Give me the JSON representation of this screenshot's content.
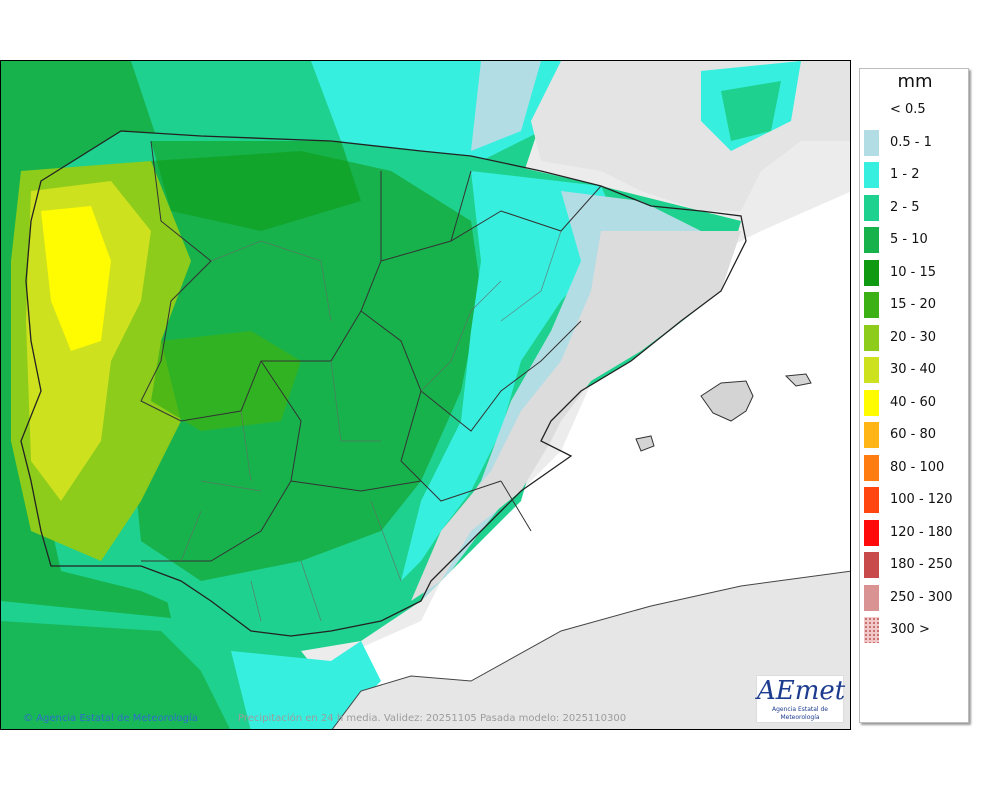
{
  "map": {
    "unit": "mm",
    "caption": "Precipitación en 24 h media. Validez: 20251105 Pasada modelo: 2025110300",
    "attribution": "Agencia Estatal de Meteorología",
    "copyright_symbol": "©",
    "logo": {
      "word": "AEmet",
      "subtitle": "Agencia Estatal de Meteorología"
    }
  },
  "legend": [
    {
      "label": "< 0.5",
      "color": "#ffffff"
    },
    {
      "label": "0.5 - 1",
      "color": "#b2dde4"
    },
    {
      "label": "1 - 2",
      "color": "#37efdf"
    },
    {
      "label": "2 - 5",
      "color": "#1fd18e"
    },
    {
      "label": "5 - 10",
      "color": "#17b24c"
    },
    {
      "label": "10 - 15",
      "color": "#0f9a12"
    },
    {
      "label": "15 - 20",
      "color": "#3bb116"
    },
    {
      "label": "20 - 30",
      "color": "#8dcc1a"
    },
    {
      "label": "30 - 40",
      "color": "#cde11e"
    },
    {
      "label": "40 - 60",
      "color": "#fffb00"
    },
    {
      "label": "60 - 80",
      "color": "#ffb515"
    },
    {
      "label": "80 - 100",
      "color": "#ff7d10"
    },
    {
      "label": "100 - 120",
      "color": "#ff4610"
    },
    {
      "label": "120 - 180",
      "color": "#ff0a0a"
    },
    {
      "label": "180 - 250",
      "color": "#c84a4a"
    },
    {
      "label": "250 - 300",
      "color": "#d99393"
    },
    {
      "label": "300 >",
      "color": "#f2c7c7"
    }
  ]
}
